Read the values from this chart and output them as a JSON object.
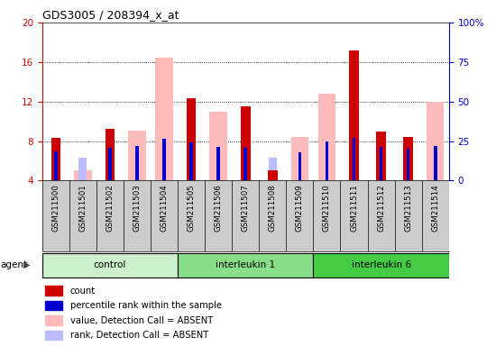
{
  "title": "GDS3005 / 208394_x_at",
  "samples": [
    "GSM211500",
    "GSM211501",
    "GSM211502",
    "GSM211503",
    "GSM211504",
    "GSM211505",
    "GSM211506",
    "GSM211507",
    "GSM211508",
    "GSM211509",
    "GSM211510",
    "GSM211511",
    "GSM211512",
    "GSM211513",
    "GSM211514"
  ],
  "groups": [
    {
      "label": "control",
      "start": 0,
      "end": 5,
      "color": "#ccf0cc"
    },
    {
      "label": "interleukin 1",
      "start": 5,
      "end": 10,
      "color": "#88dd88"
    },
    {
      "label": "interleukin 6",
      "start": 10,
      "end": 15,
      "color": "#44cc44"
    }
  ],
  "red_bars": [
    8.3,
    null,
    9.2,
    null,
    null,
    12.3,
    null,
    11.5,
    5.0,
    null,
    null,
    17.2,
    9.0,
    8.4,
    null
  ],
  "pink_bars": [
    null,
    5.0,
    null,
    9.1,
    16.4,
    null,
    11.0,
    null,
    null,
    8.4,
    12.8,
    null,
    null,
    null,
    12.0
  ],
  "blue_bars": [
    7.0,
    null,
    7.3,
    7.5,
    8.2,
    7.9,
    7.4,
    7.3,
    null,
    6.9,
    8.0,
    8.3,
    7.4,
    7.2,
    7.5
  ],
  "lightblue_bars": [
    null,
    6.3,
    null,
    null,
    null,
    null,
    null,
    null,
    6.3,
    null,
    null,
    null,
    null,
    null,
    null
  ],
  "ylim_left": [
    4,
    20
  ],
  "ylim_right": [
    0,
    100
  ],
  "yticks_left": [
    4,
    8,
    12,
    16,
    20
  ],
  "yticks_right": [
    0,
    25,
    50,
    75,
    100
  ],
  "left_axis_color": "#cc0000",
  "right_axis_color": "#0000bb",
  "xbg_color": "#cccccc",
  "grid_ticks": [
    8,
    12,
    16
  ]
}
